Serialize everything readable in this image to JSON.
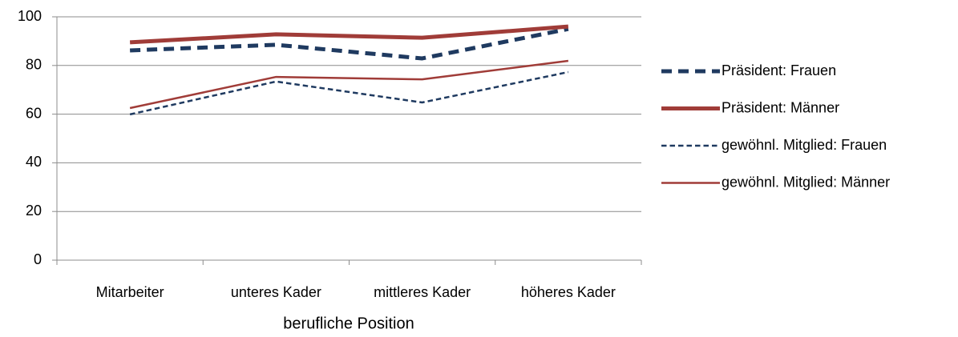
{
  "chart_data": {
    "type": "line",
    "x_label": "berufliche Position",
    "categories": [
      "Mitarbeiter",
      "unteres Kader",
      "mittleres Kader",
      "höheres Kader"
    ],
    "series": [
      {
        "name": "Präsident: Frauen",
        "color": "#1f3a60",
        "line_style": "dashed",
        "line_width": 5,
        "values": [
          86.2,
          88.5,
          82.9,
          95
        ]
      },
      {
        "name": "Präsident: Männer",
        "color": "#a03c38",
        "line_style": "solid",
        "line_width": 5,
        "values": [
          89.5,
          92.8,
          91.4,
          96
        ]
      },
      {
        "name": "gewöhnl. Mitglied: Frauen",
        "color": "#1f3a60",
        "line_style": "dashed",
        "line_width": 2.5,
        "values": [
          59.9,
          73.4,
          64.8,
          77.3
        ]
      },
      {
        "name": "gewöhnl. Mitglied: Männer",
        "color": "#a03c38",
        "line_style": "solid",
        "line_width": 2.5,
        "values": [
          62.5,
          75.3,
          74.3,
          81.9
        ]
      }
    ],
    "ylim": [
      0,
      100
    ],
    "yticks": [
      0,
      20,
      40,
      60,
      80,
      100
    ],
    "grid": true,
    "legend": "right"
  }
}
